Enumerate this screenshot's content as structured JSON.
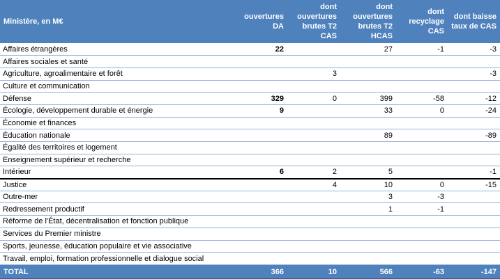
{
  "colors": {
    "header_bg": "#4f81bd",
    "header_text": "#ffffff",
    "row_border": "#95b3d7",
    "thick_border": "#000000",
    "total_bottom_border": "#366092"
  },
  "table": {
    "columns": [
      {
        "id": "ministry",
        "header_lines": [
          "Ministère, en M€"
        ]
      },
      {
        "id": "ouvertures-da",
        "header_lines": [
          "ouvertures",
          "DA"
        ]
      },
      {
        "id": "ouvertures-brutes-t2-cas",
        "header_lines": [
          "dont",
          "ouvertures",
          "brutes T2",
          "CAS"
        ]
      },
      {
        "id": "ouvertures-brutes-t2-hcas",
        "header_lines": [
          "dont",
          "ouvertures",
          "brutes T2",
          "HCAS"
        ]
      },
      {
        "id": "recyclage-cas",
        "header_lines": [
          "dont",
          "recyclage",
          "CAS"
        ]
      },
      {
        "id": "baisse-taux-de-cas",
        "header_lines": [
          "dont baisse",
          "taux de CAS"
        ]
      }
    ],
    "rows": [
      {
        "cells": [
          "Affaires étrangères",
          "22",
          "",
          "27",
          "-1",
          "-3"
        ]
      },
      {
        "cells": [
          "Affaires sociales et santé",
          "",
          "",
          "",
          "",
          ""
        ]
      },
      {
        "cells": [
          "Agriculture, agroalimentaire et forêt",
          "",
          "3",
          "",
          "",
          "-3"
        ]
      },
      {
        "cells": [
          "Culture et communication",
          "",
          "",
          "",
          "",
          ""
        ]
      },
      {
        "cells": [
          "Défense",
          "329",
          "0",
          "399",
          "-58",
          "-12"
        ]
      },
      {
        "cells": [
          "Écologie, développement durable et énergie",
          "9",
          "",
          "33",
          "0",
          "-24"
        ]
      },
      {
        "cells": [
          "Économie et finances",
          "",
          "",
          "",
          "",
          ""
        ]
      },
      {
        "cells": [
          "Éducation nationale",
          "",
          "",
          "89",
          "",
          "-89"
        ]
      },
      {
        "cells": [
          "Égalité des territoires et logement",
          "",
          "",
          "",
          "",
          ""
        ]
      },
      {
        "cells": [
          "Enseignement supérieur et recherche",
          "",
          "",
          "",
          "",
          ""
        ]
      },
      {
        "cells": [
          "Intérieur",
          "6",
          "2",
          "5",
          "",
          "-1"
        ],
        "thick_bottom": true
      },
      {
        "cells": [
          "Justice",
          "",
          "4",
          "10",
          "0",
          "-15"
        ]
      },
      {
        "cells": [
          "Outre-mer",
          "",
          "",
          "3",
          "-3",
          ""
        ]
      },
      {
        "cells": [
          "Redressement productif",
          "",
          "",
          "1",
          "-1",
          ""
        ]
      },
      {
        "cells": [
          "Réforme de l'État, décentralisation et fonction publique",
          "",
          "",
          "",
          "",
          ""
        ]
      },
      {
        "cells": [
          "Services du Premier ministre",
          "",
          "",
          "",
          "",
          ""
        ]
      },
      {
        "cells": [
          "Sports, jeunesse, éducation populaire et vie associative",
          "",
          "",
          "",
          "",
          ""
        ]
      },
      {
        "cells": [
          "Travail, emploi, formation professionnelle et dialogue social",
          "",
          "",
          "",
          "",
          ""
        ]
      }
    ],
    "total": {
      "cells": [
        "TOTAL",
        "366",
        "10",
        "566",
        "-63",
        "-147"
      ]
    }
  }
}
